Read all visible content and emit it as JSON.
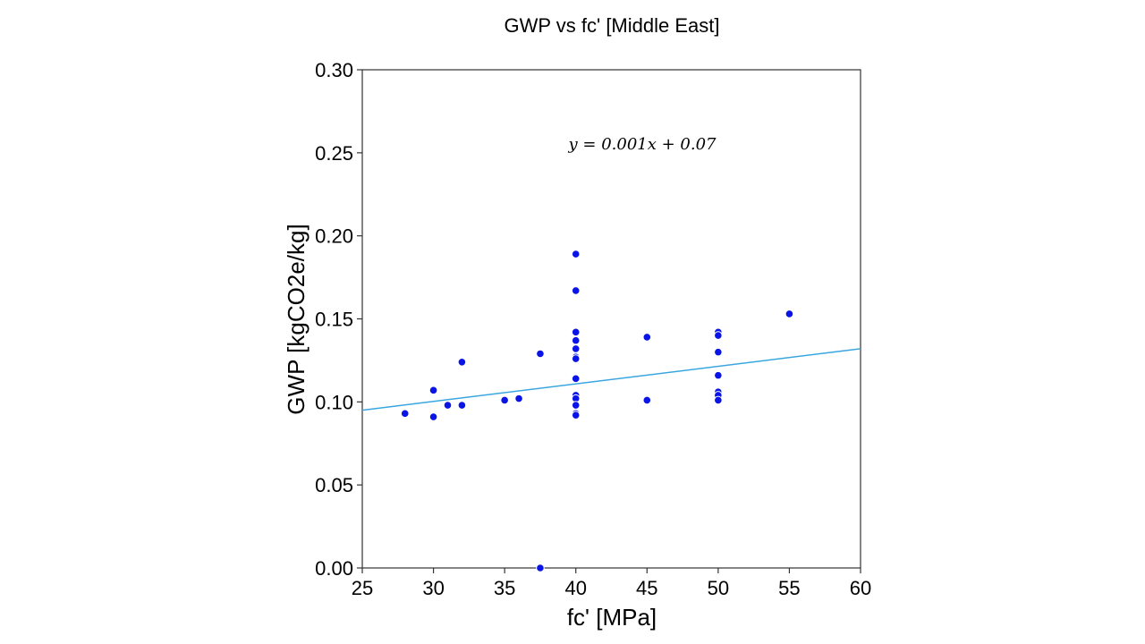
{
  "chart_data": {
    "type": "scatter",
    "title": "GWP vs fc' [Middle East]",
    "xlabel": "fc' [MPa]",
    "ylabel": "GWP [kgCO2e/kg]",
    "xlim": [
      25,
      60
    ],
    "ylim": [
      0.0,
      0.3
    ],
    "xticks": [
      "25",
      "30",
      "35",
      "40",
      "45",
      "50",
      "55",
      "60"
    ],
    "yticks": [
      "0.00",
      "0.05",
      "0.10",
      "0.15",
      "0.20",
      "0.25",
      "0.30"
    ],
    "grid": false,
    "annotation": "y = 0.001x + 0.07",
    "fit_line": {
      "x": [
        25,
        60
      ],
      "y": [
        0.095,
        0.132
      ]
    },
    "point_color": "#0a14e6",
    "line_color": "#3aa6e0",
    "points": [
      {
        "x": 28,
        "y": 0.093
      },
      {
        "x": 30,
        "y": 0.107
      },
      {
        "x": 30,
        "y": 0.091
      },
      {
        "x": 31,
        "y": 0.098
      },
      {
        "x": 32,
        "y": 0.124
      },
      {
        "x": 32,
        "y": 0.098
      },
      {
        "x": 35,
        "y": 0.101
      },
      {
        "x": 36,
        "y": 0.102
      },
      {
        "x": 37.5,
        "y": 0.129
      },
      {
        "x": 37.5,
        "y": 0.0
      },
      {
        "x": 40,
        "y": 0.189
      },
      {
        "x": 40,
        "y": 0.167
      },
      {
        "x": 40,
        "y": 0.142
      },
      {
        "x": 40,
        "y": 0.137
      },
      {
        "x": 40,
        "y": 0.132
      },
      {
        "x": 40,
        "y": 0.127
      },
      {
        "x": 40,
        "y": 0.126
      },
      {
        "x": 40,
        "y": 0.114
      },
      {
        "x": 40,
        "y": 0.104
      },
      {
        "x": 40,
        "y": 0.102
      },
      {
        "x": 40,
        "y": 0.098
      },
      {
        "x": 40,
        "y": 0.093
      },
      {
        "x": 40,
        "y": 0.092
      },
      {
        "x": 45,
        "y": 0.139
      },
      {
        "x": 45,
        "y": 0.101
      },
      {
        "x": 50,
        "y": 0.142
      },
      {
        "x": 50,
        "y": 0.14
      },
      {
        "x": 50,
        "y": 0.13
      },
      {
        "x": 50,
        "y": 0.116
      },
      {
        "x": 50,
        "y": 0.106
      },
      {
        "x": 50,
        "y": 0.104
      },
      {
        "x": 50,
        "y": 0.101
      },
      {
        "x": 55,
        "y": 0.153
      }
    ]
  }
}
